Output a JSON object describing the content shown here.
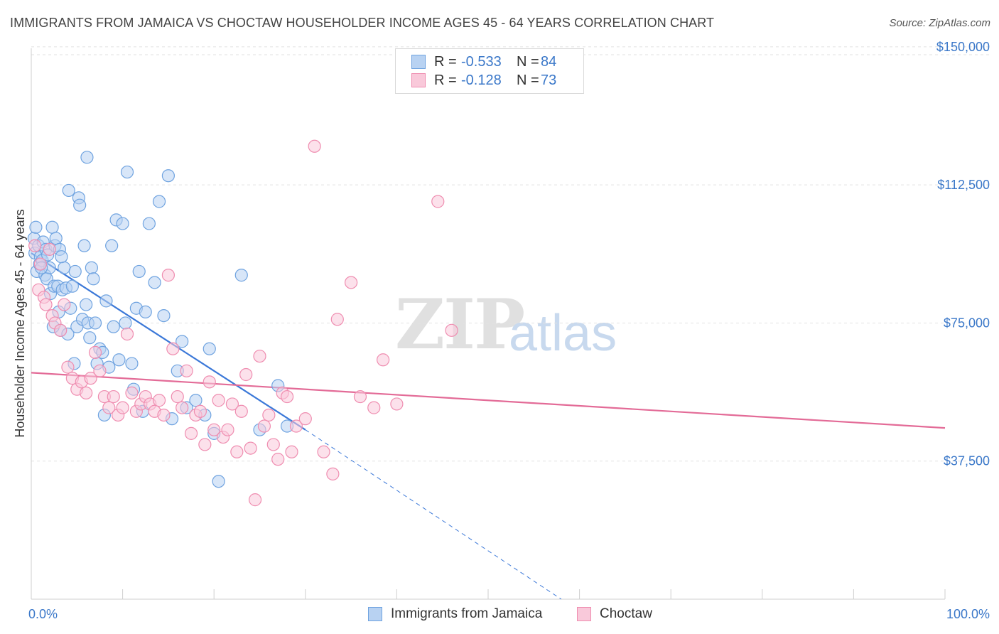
{
  "header": {
    "title": "IMMIGRANTS FROM JAMAICA VS CHOCTAW HOUSEHOLDER INCOME AGES 45 - 64 YEARS CORRELATION CHART",
    "source": "Source: ZipAtlas.com"
  },
  "watermark": {
    "zip": "ZIP",
    "atlas": "atlas"
  },
  "legend": {
    "rows": [
      {
        "r_label": "R =",
        "r_value": "-0.533",
        "n_label": "N =",
        "n_value": "84",
        "color": "#6fa3e0",
        "fill": "#b8d2f2"
      },
      {
        "r_label": "R =",
        "r_value": "-0.128",
        "n_label": "N =",
        "n_value": "73",
        "color": "#ef8db0",
        "fill": "#f9c9da"
      }
    ]
  },
  "bottom_legend": {
    "series1": "Immigrants from Jamaica",
    "series2": "Choctaw"
  },
  "chart_data": {
    "type": "scatter",
    "title": "IMMIGRANTS FROM JAMAICA VS CHOCTAW HOUSEHOLDER INCOME AGES 45 - 64 YEARS CORRELATION CHART",
    "xlabel": "",
    "ylabel": "Householder Income Ages 45 - 64 years",
    "xlim": [
      0,
      100
    ],
    "ylim": [
      0,
      155000
    ],
    "x_tick_labels": [
      "0.0%",
      "100.0%"
    ],
    "y_ticks": [
      37500,
      75000,
      112500,
      150000
    ],
    "y_tick_labels": [
      "$37,500",
      "$75,000",
      "$112,500",
      "$150,000"
    ],
    "series": [
      {
        "name": "Immigrants from Jamaica",
        "color": "#6fa3e0",
        "fill": "#b8d2f2",
        "trend": {
          "x0": 0,
          "y0": 94000,
          "x1": 30,
          "y1": 46000,
          "dash_to_x": 58,
          "dash_to_y": 0
        },
        "points": [
          [
            0.3,
            98000
          ],
          [
            0.4,
            94000
          ],
          [
            0.5,
            101000
          ],
          [
            0.6,
            89000
          ],
          [
            0.8,
            96000
          ],
          [
            0.9,
            91000
          ],
          [
            1.0,
            93000
          ],
          [
            1.2,
            92000
          ],
          [
            1.3,
            97000
          ],
          [
            1.5,
            88000
          ],
          [
            1.6,
            95000
          ],
          [
            1.7,
            87000
          ],
          [
            1.8,
            93500
          ],
          [
            2.0,
            90000
          ],
          [
            2.1,
            83000
          ],
          [
            2.3,
            101000
          ],
          [
            2.5,
            85000
          ],
          [
            2.6,
            96000
          ],
          [
            2.7,
            98000
          ],
          [
            2.9,
            85000
          ],
          [
            3.0,
            78000
          ],
          [
            3.1,
            95000
          ],
          [
            3.2,
            73000
          ],
          [
            3.4,
            84000
          ],
          [
            3.6,
            90000
          ],
          [
            3.8,
            84500
          ],
          [
            4.0,
            72000
          ],
          [
            4.1,
            111000
          ],
          [
            4.3,
            79000
          ],
          [
            4.5,
            85000
          ],
          [
            4.8,
            89000
          ],
          [
            5.0,
            74000
          ],
          [
            5.2,
            109000
          ],
          [
            5.3,
            107000
          ],
          [
            5.6,
            76000
          ],
          [
            5.8,
            96000
          ],
          [
            6.0,
            80000
          ],
          [
            6.2,
            75000
          ],
          [
            6.4,
            71000
          ],
          [
            6.6,
            90000
          ],
          [
            6.8,
            87000
          ],
          [
            7.0,
            75000
          ],
          [
            7.2,
            64000
          ],
          [
            7.5,
            68000
          ],
          [
            8.0,
            50000
          ],
          [
            8.2,
            81000
          ],
          [
            8.5,
            63000
          ],
          [
            8.8,
            96000
          ],
          [
            9.0,
            74000
          ],
          [
            9.3,
            103000
          ],
          [
            9.6,
            65000
          ],
          [
            10.0,
            102000
          ],
          [
            10.3,
            75000
          ],
          [
            10.5,
            116000
          ],
          [
            11.0,
            64000
          ],
          [
            11.2,
            57000
          ],
          [
            11.5,
            79000
          ],
          [
            11.8,
            89000
          ],
          [
            12.5,
            78000
          ],
          [
            12.9,
            102000
          ],
          [
            13.5,
            86000
          ],
          [
            14.0,
            108000
          ],
          [
            14.5,
            77000
          ],
          [
            15.0,
            115000
          ],
          [
            15.4,
            49000
          ],
          [
            16.0,
            62000
          ],
          [
            16.5,
            70000
          ],
          [
            17.0,
            52000
          ],
          [
            18.0,
            54000
          ],
          [
            19.0,
            50000
          ],
          [
            19.5,
            68000
          ],
          [
            20.0,
            45000
          ],
          [
            20.5,
            32000
          ],
          [
            23.0,
            88000
          ],
          [
            25.0,
            46000
          ],
          [
            27.0,
            58000
          ],
          [
            28.0,
            47000
          ],
          [
            6.1,
            120000
          ],
          [
            2.4,
            74000
          ],
          [
            4.7,
            64000
          ],
          [
            3.3,
            93000
          ],
          [
            1.1,
            90000
          ],
          [
            7.8,
            67000
          ],
          [
            12.2,
            51000
          ]
        ]
      },
      {
        "name": "Choctaw",
        "color": "#ef8db0",
        "fill": "#f9c9da",
        "trend": {
          "x0": 0,
          "y0": 61500,
          "x1": 100,
          "y1": 46500
        },
        "points": [
          [
            0.4,
            96000
          ],
          [
            0.8,
            84000
          ],
          [
            1.0,
            91000
          ],
          [
            1.4,
            82000
          ],
          [
            1.6,
            80000
          ],
          [
            2.0,
            95000
          ],
          [
            2.3,
            77000
          ],
          [
            2.6,
            75000
          ],
          [
            3.2,
            73000
          ],
          [
            3.6,
            80000
          ],
          [
            4.0,
            63000
          ],
          [
            4.5,
            60000
          ],
          [
            5.0,
            57000
          ],
          [
            5.5,
            59000
          ],
          [
            6.0,
            56000
          ],
          [
            6.5,
            60000
          ],
          [
            7.0,
            67000
          ],
          [
            7.5,
            62000
          ],
          [
            8.0,
            55000
          ],
          [
            8.5,
            52000
          ],
          [
            9.0,
            55000
          ],
          [
            9.5,
            50000
          ],
          [
            10.0,
            52000
          ],
          [
            10.5,
            72000
          ],
          [
            11.0,
            56000
          ],
          [
            11.5,
            51000
          ],
          [
            12.0,
            53000
          ],
          [
            12.5,
            55000
          ],
          [
            13.0,
            53000
          ],
          [
            13.5,
            51000
          ],
          [
            14.0,
            54000
          ],
          [
            14.5,
            50000
          ],
          [
            15.0,
            88000
          ],
          [
            15.5,
            68000
          ],
          [
            16.0,
            55000
          ],
          [
            16.5,
            52000
          ],
          [
            17.0,
            62000
          ],
          [
            17.5,
            45000
          ],
          [
            18.0,
            50000
          ],
          [
            18.5,
            51000
          ],
          [
            19.0,
            42000
          ],
          [
            19.5,
            59000
          ],
          [
            20.0,
            46000
          ],
          [
            20.5,
            54000
          ],
          [
            21.0,
            44000
          ],
          [
            21.5,
            46000
          ],
          [
            22.0,
            53000
          ],
          [
            22.5,
            40000
          ],
          [
            23.0,
            51000
          ],
          [
            23.5,
            61000
          ],
          [
            24.0,
            41000
          ],
          [
            24.5,
            27000
          ],
          [
            25.0,
            66000
          ],
          [
            25.5,
            47000
          ],
          [
            26.0,
            50000
          ],
          [
            26.5,
            42000
          ],
          [
            27.0,
            38000
          ],
          [
            27.5,
            56000
          ],
          [
            28.0,
            55000
          ],
          [
            28.5,
            40000
          ],
          [
            29.0,
            47000
          ],
          [
            30.0,
            49000
          ],
          [
            31.0,
            123000
          ],
          [
            32.0,
            40000
          ],
          [
            33.0,
            34000
          ],
          [
            33.5,
            76000
          ],
          [
            35.0,
            86000
          ],
          [
            36.0,
            55000
          ],
          [
            37.5,
            52000
          ],
          [
            38.5,
            65000
          ],
          [
            40.0,
            53000
          ],
          [
            44.5,
            108000
          ],
          [
            46.0,
            73000
          ]
        ]
      }
    ]
  }
}
